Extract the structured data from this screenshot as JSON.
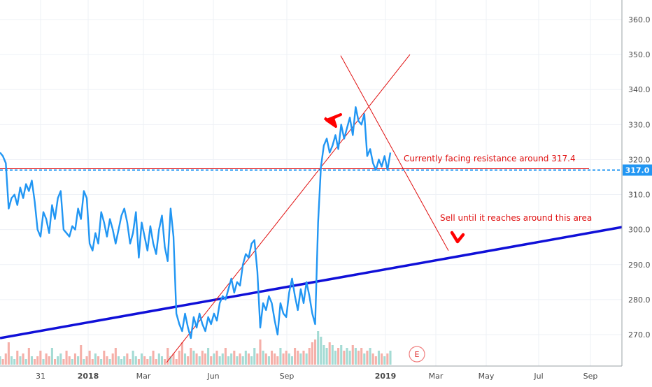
{
  "chart_data": {
    "type": "line",
    "title": "",
    "xlabel": "",
    "ylabel": "",
    "ylim": [
      262,
      365
    ],
    "x_tick_labels": [
      "31",
      "2018",
      "Mar",
      "Jun",
      "Sep",
      "2019",
      "Mar",
      "May",
      "Jul",
      "Sep"
    ],
    "y_tick_labels": [
      "270.0",
      "280.0",
      "290.0",
      "300.0",
      "310.0",
      "320.0",
      "330.0",
      "340.0",
      "350.0",
      "360.0"
    ],
    "y_ticks": [
      270,
      280,
      290,
      300,
      310,
      320,
      330,
      340,
      350,
      360
    ],
    "price_marker_label": "317.0",
    "price_marker_value": 317.0,
    "resistance_level": 317.4,
    "series": [
      {
        "values": [
          322,
          321,
          319,
          306,
          309,
          310,
          307,
          312,
          309,
          313,
          311,
          314,
          308,
          300,
          298,
          305,
          303,
          299,
          307,
          303,
          309,
          311,
          300,
          299,
          298,
          301,
          300,
          306,
          303,
          311,
          309,
          296,
          294,
          299,
          296,
          305,
          302,
          298,
          303,
          300,
          296,
          300,
          304,
          306,
          302,
          296,
          299,
          305,
          292,
          302,
          298,
          294,
          301,
          296,
          293,
          300,
          304,
          295,
          291,
          306,
          298,
          276,
          273,
          271,
          276,
          272,
          269,
          275,
          272,
          276,
          273,
          271,
          275,
          273,
          276,
          274,
          279,
          281,
          280,
          283,
          286,
          282,
          285,
          284,
          290,
          293,
          292,
          296,
          297,
          288,
          272,
          279,
          277,
          281,
          279,
          274,
          270,
          279,
          276,
          275,
          282,
          286,
          281,
          277,
          283,
          279,
          285,
          281,
          276,
          273,
          302,
          318,
          324,
          326,
          322,
          324,
          327,
          323,
          330,
          326,
          329,
          332,
          327,
          335,
          331,
          330,
          333,
          321,
          323,
          319,
          317,
          320,
          318,
          321,
          317,
          322
        ]
      }
    ],
    "volume_bars": [
      3,
      2,
      4,
      8,
      3,
      2,
      5,
      3,
      4,
      2,
      6,
      3,
      2,
      3,
      5,
      2,
      4,
      3,
      6,
      2,
      3,
      4,
      2,
      5,
      3,
      2,
      4,
      3,
      7,
      2,
      3,
      5,
      2,
      4,
      3,
      2,
      5,
      3,
      2,
      4,
      6,
      3,
      2,
      3,
      4,
      2,
      5,
      3,
      2,
      4,
      3,
      2,
      3,
      5,
      2,
      4,
      3,
      2,
      6,
      3,
      4,
      2,
      5,
      8,
      4,
      3,
      6,
      5,
      4,
      3,
      5,
      4,
      6,
      3,
      4,
      5,
      3,
      4,
      6,
      3,
      4,
      5,
      3,
      4,
      3,
      5,
      4,
      3,
      6,
      4,
      9,
      5,
      4,
      3,
      5,
      4,
      3,
      6,
      4,
      5,
      4,
      3,
      6,
      5,
      4,
      5,
      4,
      6,
      8,
      9,
      12,
      10,
      7,
      6,
      8,
      7,
      5,
      6,
      7,
      5,
      6,
      5,
      7,
      6,
      5,
      6,
      4,
      5,
      6,
      4,
      3,
      5,
      4,
      3,
      4,
      5
    ],
    "annotations": [
      "Currently facing resistance around 317.4",
      "Sell until it reaches around this area"
    ],
    "earnings_marker": "E",
    "colors": {
      "price_line": "#2196f3",
      "trend_line": "#1010d8",
      "annotation_red": "#e01010",
      "arrow_red": "#ff0000",
      "volume_up": "#9ad7cf",
      "volume_down": "#f4a7a0",
      "grid": "#eef1f6",
      "axis_text": "#4a4a4a"
    },
    "grid": true
  }
}
